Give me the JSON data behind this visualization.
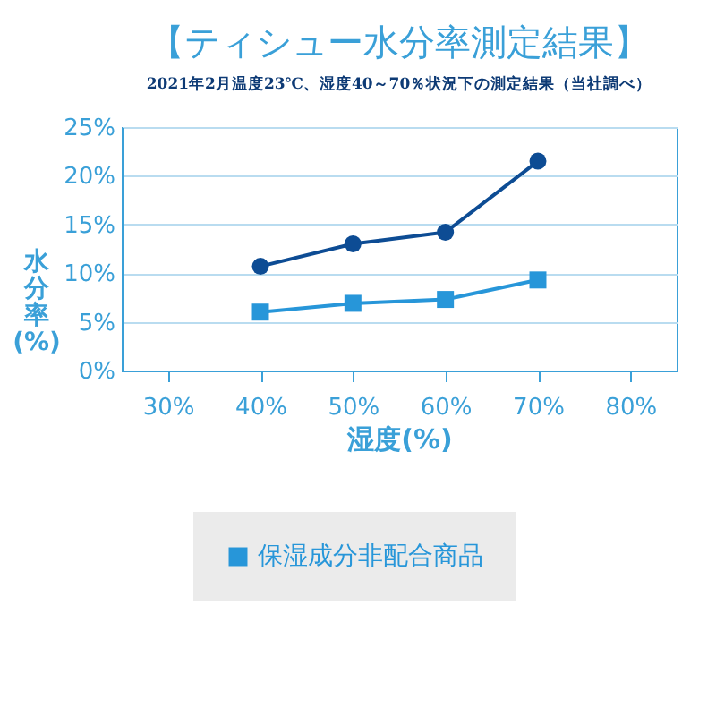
{
  "chart_data": {
    "type": "line",
    "title": "【ティシュー水分率測定結果】",
    "subtitle": "2021年2月温度23℃、湿度40～70％状況下の測定結果（当社調べ）",
    "xlabel": "湿度(%)",
    "ylabel": "水分率(%)",
    "x": [
      40,
      50,
      60,
      70
    ],
    "series": [
      {
        "color": "#0d4c94",
        "marker": "circle",
        "values": [
          10.7,
          13.0,
          14.2,
          21.5
        ]
      },
      {
        "name": "保湿成分非配合商品",
        "color": "#2796d9",
        "marker": "square",
        "values": [
          6.0,
          6.9,
          7.3,
          9.3
        ]
      }
    ],
    "xlim": [
      25,
      85
    ],
    "xticks": [
      {
        "value": 30,
        "label": "30%"
      },
      {
        "value": 40,
        "label": "40%"
      },
      {
        "value": 50,
        "label": "50%"
      },
      {
        "value": 60,
        "label": "60%"
      },
      {
        "value": 70,
        "label": "70%"
      },
      {
        "value": 80,
        "label": "80%"
      }
    ],
    "ylim": [
      0,
      25
    ],
    "yticks": [
      {
        "value": 0,
        "label": "0%"
      },
      {
        "value": 5,
        "label": "5%"
      },
      {
        "value": 10,
        "label": "10%"
      },
      {
        "value": 15,
        "label": "15%"
      },
      {
        "value": 20,
        "label": "20%"
      },
      {
        "value": 25,
        "label": "25%"
      }
    ],
    "grid": "y",
    "legend": "bottom"
  }
}
